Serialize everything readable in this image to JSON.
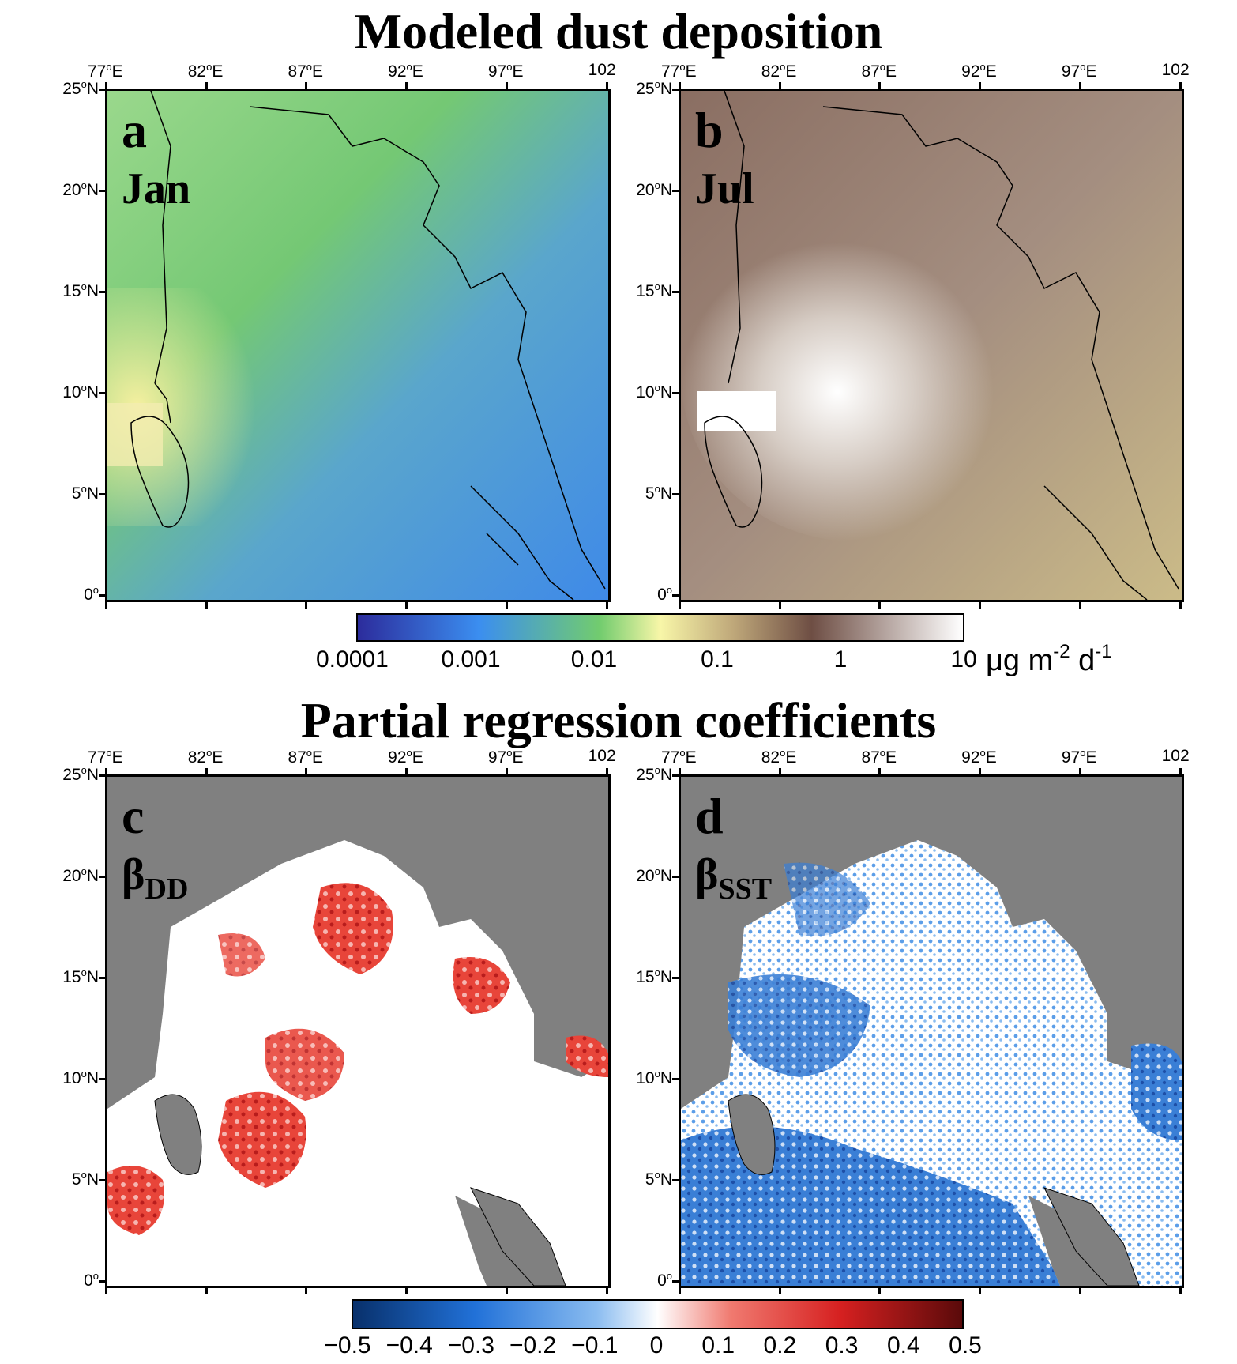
{
  "figure": {
    "top_title": "Modeled dust deposition",
    "bottom_title": "Partial regression coefficients"
  },
  "axes": {
    "lon_ticks": [
      "77",
      "82",
      "87",
      "92",
      "97",
      "102"
    ],
    "lon_suffix": "E",
    "lon_last_label": "102",
    "lat_ticks": [
      "25",
      "20",
      "15",
      "10",
      "5",
      "0"
    ],
    "lat_suffix": "N",
    "degree_symbol": "o",
    "zero_lat_label": "0"
  },
  "panels": [
    {
      "id": "a",
      "letter": "a",
      "label": "Jan",
      "label_sub": ""
    },
    {
      "id": "b",
      "letter": "b",
      "label": "Jul",
      "label_sub": ""
    },
    {
      "id": "c",
      "letter": "c",
      "label": "β",
      "label_sub": "DD"
    },
    {
      "id": "d",
      "letter": "d",
      "label": "β",
      "label_sub": "SST"
    }
  ],
  "colorbar_top": {
    "labels": [
      "0.0001",
      "0.001",
      "0.01",
      "0.1",
      "1",
      "10"
    ],
    "unit_main": "μg m",
    "unit_exp1": "-2",
    "unit_mid": " d",
    "unit_exp2": "-1",
    "colors": [
      "#2c2c9c",
      "#3b8ef0",
      "#72cc6e",
      "#f8f6a8",
      "#bfa87a",
      "#6e4e44",
      "#ffffff"
    ]
  },
  "colorbar_bottom": {
    "labels": [
      "−0.5",
      "−0.4",
      "−0.3",
      "−0.2",
      "−0.1",
      "0",
      "0.1",
      "0.2",
      "0.3",
      "0.4",
      "0.5"
    ],
    "colors": [
      "#08306b",
      "#2171d8",
      "#6aaef0",
      "#ffffff",
      "#f07a70",
      "#d62020",
      "#5a0a0a"
    ]
  },
  "map_colors": {
    "land_gray": "#808080",
    "ocean_white": "#ffffff",
    "coast": "#000000"
  }
}
